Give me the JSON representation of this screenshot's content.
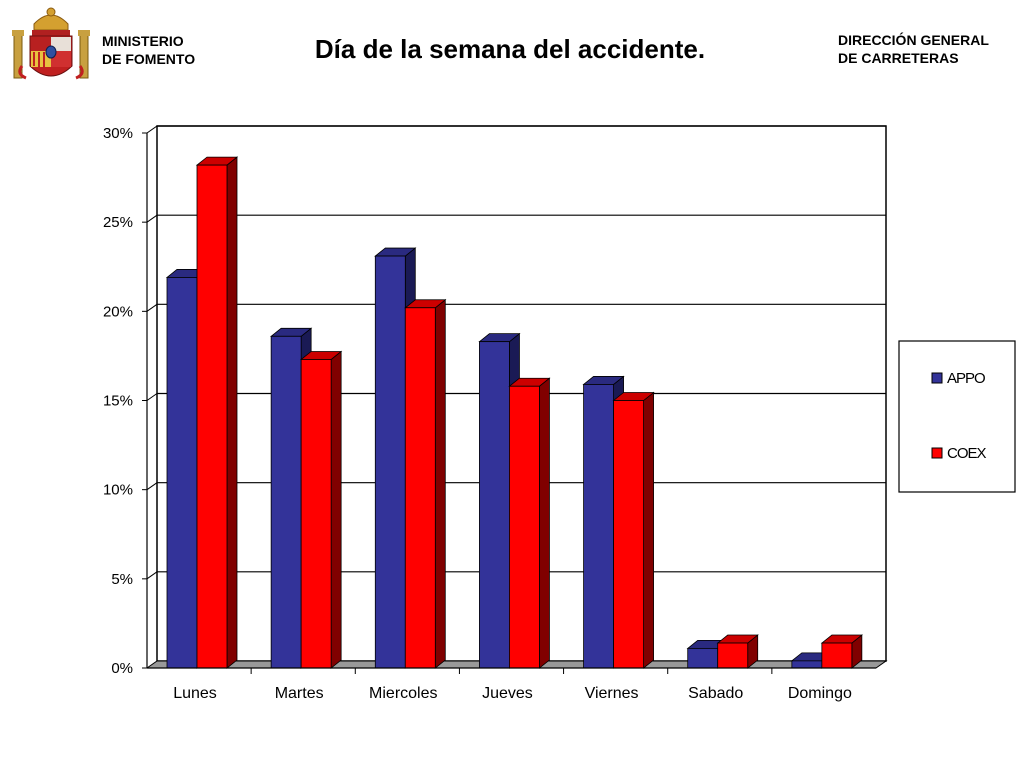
{
  "header": {
    "ministry_line1": "MINISTERIO",
    "ministry_line2": "DE FOMENTO",
    "direction_line1": "DIRECCIÓN GENERAL",
    "direction_line2": "DE CARRETERAS"
  },
  "colors": {
    "appo": "#333399",
    "coex": "#ff0000"
  },
  "chart_data": {
    "type": "bar",
    "title": "Día de la semana del accidente.",
    "categories": [
      "Lunes",
      "Martes",
      "Miercoles",
      "Jueves",
      "Viernes",
      "Sabado",
      "Domingo"
    ],
    "series": [
      {
        "name": "APPO",
        "values": [
          21.9,
          18.6,
          23.1,
          18.3,
          15.9,
          1.1,
          0.4
        ]
      },
      {
        "name": "COEX",
        "values": [
          28.2,
          17.3,
          20.2,
          15.8,
          15.0,
          1.4,
          1.4
        ]
      }
    ],
    "yticks": [
      "0%",
      "5%",
      "10%",
      "15%",
      "20%",
      "25%",
      "30%"
    ],
    "ylim": [
      0,
      30
    ],
    "grid": true,
    "legend_position": "right"
  }
}
